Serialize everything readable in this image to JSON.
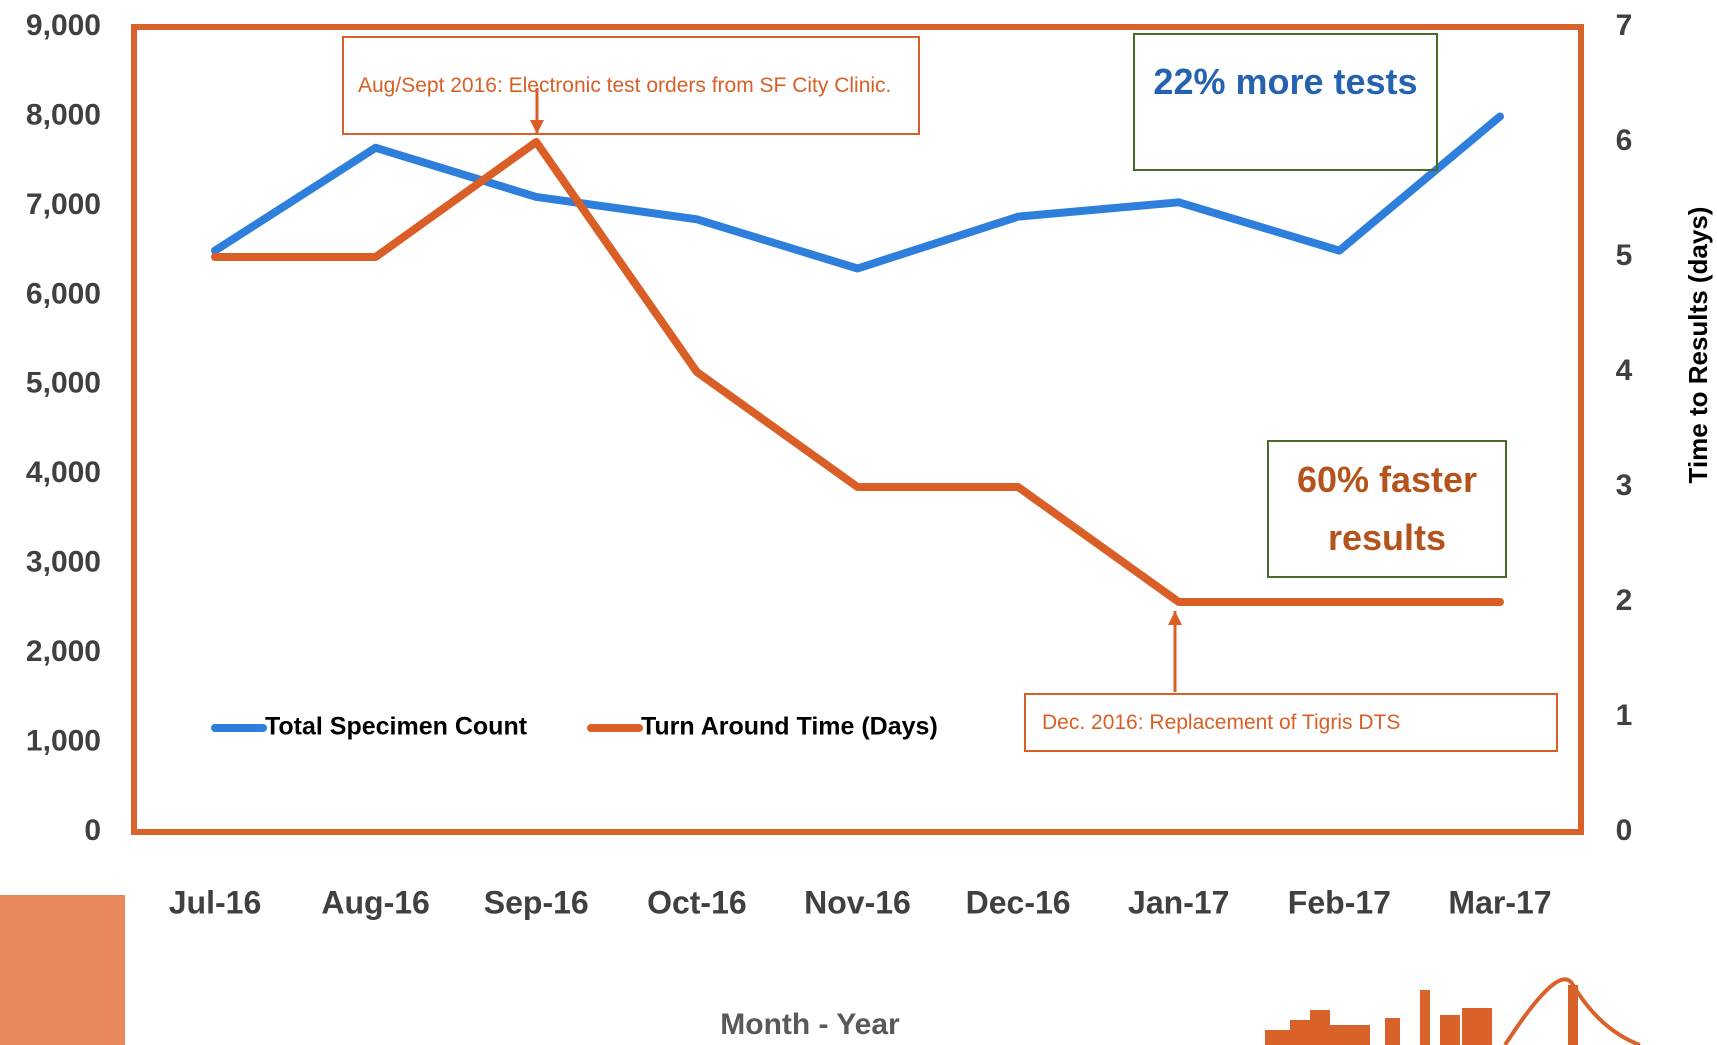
{
  "chart_data": {
    "type": "line",
    "categories": [
      "Jul-16",
      "Aug-16",
      "Sep-16",
      "Oct-16",
      "Nov-16",
      "Dec-16",
      "Jan-17",
      "Feb-17",
      "Mar-17"
    ],
    "series": [
      {
        "name": "Total Specimen Count",
        "color": "#2e7fdc",
        "values": [
          6500,
          7650,
          7100,
          6850,
          6300,
          6880,
          7040,
          6500,
          8000
        ]
      },
      {
        "name": "Turn Around Time (Days)",
        "color": "#d95f26",
        "axis": "y2",
        "values": [
          5,
          5,
          6,
          4,
          3,
          3,
          2,
          2,
          2
        ]
      }
    ],
    "ylim": [
      0,
      9000
    ],
    "yticks": [
      0,
      {
        "value": 1000,
        "label": "1,000"
      },
      {
        "value": 2000,
        "label": "2,000"
      },
      {
        "value": 3000,
        "label": "3,000"
      },
      {
        "value": 4000,
        "label": "4,000"
      },
      {
        "value": 5000,
        "label": "5,000"
      },
      {
        "value": 6000,
        "label": "6,000"
      },
      {
        "value": 7000,
        "label": "7,000"
      },
      {
        "value": 8000,
        "label": "8,000"
      },
      {
        "value": 9000,
        "label": "9,000"
      }
    ],
    "y2lim": [
      0,
      7
    ],
    "y2ticks": [
      0,
      1,
      2,
      3,
      4,
      5,
      6,
      7
    ],
    "x_label": "Month - Year",
    "y2_label": "Time to Results (days)",
    "grid": false,
    "annotations": [
      {
        "text": "Aug/Sept 2016: Electronic test orders from SF City Clinic.",
        "color": "#d95f26"
      },
      {
        "text": "22% more tests",
        "color": "#2563b0"
      },
      {
        "text": "60% faster results",
        "color": "#b5531c"
      },
      {
        "text": "Dec. 2016: Replacement of Tigris DTS",
        "color": "#d95f26"
      }
    ]
  }
}
